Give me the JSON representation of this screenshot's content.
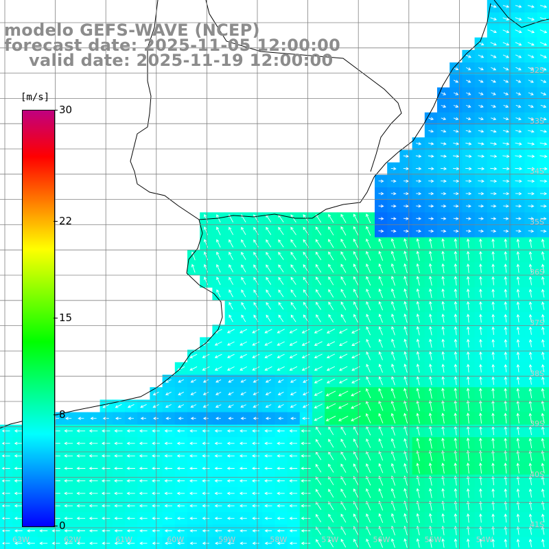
{
  "title": {
    "line1": "modelo GEFS-WAVE (NCEP)",
    "line2": "forecast date: 2025-11-05 12:00:00",
    "line3": "valid date: 2025-11-19 12:00:00"
  },
  "colorbar": {
    "unit": "[m/s]",
    "min": 0,
    "max": 30,
    "ticks": [
      "30",
      "22",
      "15",
      "8",
      "0"
    ],
    "tick_values": [
      30,
      22,
      15,
      8,
      0
    ],
    "colors": [
      "#0000ff",
      "#0080ff",
      "#00ffff",
      "#00ff80",
      "#00ff00",
      "#80ff00",
      "#ffff00",
      "#ff8000",
      "#ff0000",
      "#c00080"
    ]
  },
  "map": {
    "lat_labels": [
      "32S",
      "33S",
      "34S",
      "35S",
      "36S",
      "37S",
      "38S",
      "39S",
      "40S",
      "41S"
    ],
    "lon_labels": [
      "63W",
      "62W",
      "61W",
      "60W",
      "59W",
      "58W",
      "57W",
      "56W",
      "55W",
      "54W"
    ],
    "land_color": "#ffffff",
    "grid_color": "#808080",
    "arrow_color": "#ffffff"
  }
}
